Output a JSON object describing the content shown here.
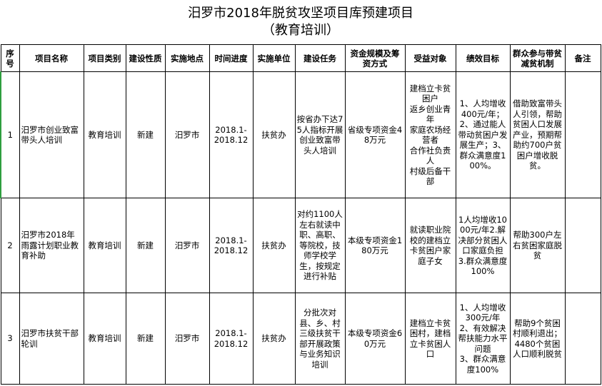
{
  "title": "汨罗市2018年脱贫攻坚项目库预建项目",
  "subtitle": "（教育培训）",
  "headers": [
    "序号",
    "项目名称",
    "项目类别",
    "建设性质",
    "实施地点",
    "时间进度",
    "实施单位",
    "建设任务",
    "资金规模及筹资方式",
    "受益对象",
    "绩效目标",
    "群众参与带贫减贫机制",
    "备注"
  ],
  "rows": [
    [
      "1",
      "汨罗市创业致富带头人培训",
      "教育培训",
      "新建",
      "汨罗市",
      "2018.1-\n2018.12",
      "扶贫办",
      "按省办下达75人指标开展创业致富带头人培训",
      "省级专项资金48万元",
      "建档立卡贫困户\n返乡创业青年\n家庭农场经营者\n合作社负责人\n村级后备干部",
      "1、人均增收400元/年；2、通过能人带动贫困户发展生产；3、群众满意度100%。",
      "借助致富带头人引领，帮助贫困人口发展产业，预期帮助约700户贫困户增收脱贫。",
      ""
    ],
    [
      "2",
      "汨罗市2018年雨露计划职业教育补助",
      "教育培训",
      "新建",
      "汨罗市",
      "2018.1-\n2018.12",
      "扶贫办",
      "对约1100人左右就读中职、高职、等院校，技师学校学生，按规定进行补贴",
      "本级专项资金180万元",
      "就读职业院校的建档立卡贫困户家庭子女",
      "1人均增收1000元/年2.解决部分贫困人口家庭负担\n3.群众满意度100%",
      "帮助300户左右贫困家庭脱贫",
      ""
    ],
    [
      "3",
      "汨罗市扶贫干部轮训",
      "教育培训",
      "新建",
      "汨罗市",
      "2018.1-\n2018.12",
      "扶贫办",
      "分批次对县、乡、村三级扶贫干部开展政策与业务知识培训",
      "本级专项资金60万元",
      "建档立卡贫困村，建档立卡贫困人口",
      "1、人均增收300元/年\n2、有效解决帮扶能力水平问题\n3、群众满意度100%",
      "帮助9个贫困村顺利退出；4480个贫困人口顺利脱贫",
      ""
    ]
  ]
}
